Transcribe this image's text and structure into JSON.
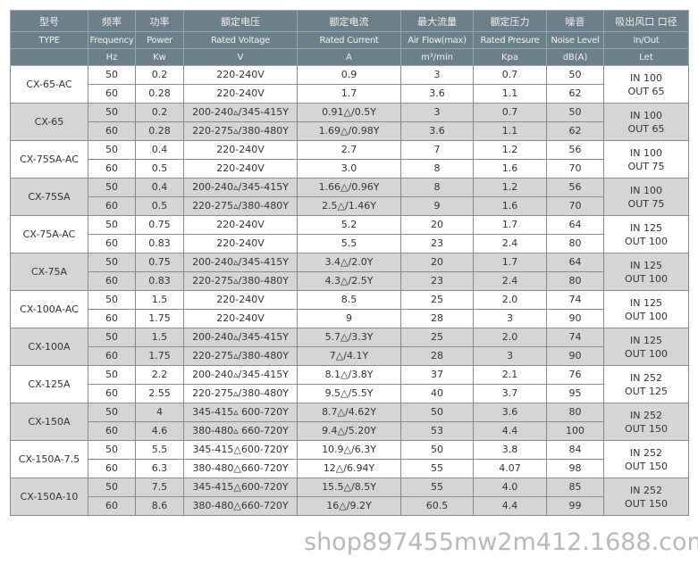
{
  "header": {
    "cn": [
      "型号",
      "频率",
      "功率",
      "额定电压",
      "额定电流",
      "最大流量",
      "额定压力",
      "噪音",
      "吸出风口 口径"
    ],
    "en": [
      "TYPE",
      "Frequency",
      "Power",
      "Rated Voltage",
      "Rated Current",
      "Air Flow(max)",
      "Rated Presure",
      "Noise Level",
      "In/Out"
    ],
    "units": [
      "",
      "Hz",
      "Kw",
      "V",
      "A",
      "m³/min",
      "Kpa",
      "dB(A)",
      "Let"
    ]
  },
  "models": [
    {
      "type": "CX-65-AC",
      "port": [
        "IN 100",
        "OUT 65"
      ],
      "rows": [
        [
          "50",
          "0.2",
          "220-240V",
          "0.9",
          "3",
          "0.7",
          "50"
        ],
        [
          "60",
          "0.28",
          "220-240V",
          "1.7",
          "3.6",
          "1.1",
          "62"
        ]
      ]
    },
    {
      "type": "CX-65",
      "port": [
        "IN 100",
        "OUT 65"
      ],
      "rows": [
        [
          "50",
          "0.2",
          "200-240▵/345-415Y",
          "0.91△/0.5Y",
          "3",
          "0.7",
          "50"
        ],
        [
          "60",
          "0.28",
          "220-275▵/380-480Y",
          "1.69△/0.98Y",
          "3.6",
          "1.1",
          "62"
        ]
      ]
    },
    {
      "type": "CX-75SA-AC",
      "port": [
        "IN 100",
        "OUT 75"
      ],
      "rows": [
        [
          "50",
          "0.4",
          "220-240V",
          "2.7",
          "7",
          "1.2",
          "56"
        ],
        [
          "60",
          "0.5",
          "220-240V",
          "3.0",
          "8",
          "1.6",
          "70"
        ]
      ]
    },
    {
      "type": "CX-75SA",
      "port": [
        "IN 100",
        "OUT 75"
      ],
      "rows": [
        [
          "50",
          "0.4",
          "200-240▵/345-415Y",
          "1.66△/0.96Y",
          "8",
          "1.2",
          "56"
        ],
        [
          "60",
          "0.5",
          "220-275▵/380-480Y",
          "2.5△/1.46Y",
          "9",
          "1.6",
          "70"
        ]
      ]
    },
    {
      "type": "CX-75A-AC",
      "port": [
        "IN 125",
        "OUT 100"
      ],
      "rows": [
        [
          "50",
          "0.75",
          "220-240V",
          "5.2",
          "20",
          "1.7",
          "64"
        ],
        [
          "60",
          "0.83",
          "220-240V",
          "5.5",
          "23",
          "2.4",
          "80"
        ]
      ]
    },
    {
      "type": "CX-75A",
      "port": [
        "IN 125",
        "OUT 100"
      ],
      "rows": [
        [
          "50",
          "0.75",
          "200-240▵/345-415Y",
          "3.4△/2.0Y",
          "20",
          "1.7",
          "64"
        ],
        [
          "60",
          "0.83",
          "220-275▵/380-480Y",
          "4.3△/2.5Y",
          "23",
          "2.4",
          "80"
        ]
      ]
    },
    {
      "type": "CX-100A-AC",
      "port": [
        "IN 125",
        "OUT 100"
      ],
      "rows": [
        [
          "50",
          "1.5",
          "220-240V",
          "8.5",
          "25",
          "2.0",
          "74"
        ],
        [
          "60",
          "1.75",
          "220-240V",
          "9",
          "28",
          "3",
          "90"
        ]
      ]
    },
    {
      "type": "CX-100A",
      "port": [
        "IN 125",
        "OUT 100"
      ],
      "rows": [
        [
          "50",
          "1.5",
          "200-240▵/345-415Y",
          "5.7△/3.3Y",
          "25",
          "2.0",
          "74"
        ],
        [
          "60",
          "1.75",
          "220-275▵/380-480Y",
          "7△/4.1Y",
          "28",
          "3",
          "90"
        ]
      ]
    },
    {
      "type": "CX-125A",
      "port": [
        "IN 252",
        "OUT 125"
      ],
      "rows": [
        [
          "50",
          "2.2",
          "200-240▵/345-415Y",
          "8.1△/3.8Y",
          "37",
          "2.1",
          "76"
        ],
        [
          "60",
          "2.55",
          "220-275▵/380-480Y",
          "9.5△/5.5Y",
          "40",
          "3.7",
          "95"
        ]
      ]
    },
    {
      "type": "CX-150A",
      "port": [
        "IN 252",
        "OUT 150"
      ],
      "rows": [
        [
          "50",
          "4",
          "345-415▵ 600-720Y",
          "8.7△/4.62Y",
          "50",
          "3.6",
          "80"
        ],
        [
          "60",
          "4.6",
          "380-480▵ 660-720Y",
          "9.4△/5.20Y",
          "53",
          "4.4",
          "100"
        ]
      ]
    },
    {
      "type": "CX-150A-7.5",
      "port": [
        "IN 252",
        "OUT 150"
      ],
      "rows": [
        [
          "50",
          "5.5",
          "345-415△600-720Y",
          "10.9△/6.3Y",
          "50",
          "3.8",
          "84"
        ],
        [
          "60",
          "6.3",
          "380-480△660-720Y",
          "12△/6.94Y",
          "55",
          "4.07",
          "98"
        ]
      ]
    },
    {
      "type": "CX-150A-10",
      "port": [
        "IN 252",
        "OUT 150"
      ],
      "rows": [
        [
          "50",
          "7.5",
          "345-415△600-720Y",
          "15.5△/8.5Y",
          "55",
          "4.0",
          "85"
        ],
        [
          "60",
          "8.6",
          "380-480△660-720Y",
          "16△/9.2Y",
          "60.5",
          "4.4",
          "99"
        ]
      ]
    }
  ],
  "watermark": "shop897455mw2m412.1688.com",
  "colors": {
    "header_bg": "#6d7f88",
    "shaded_row": "#d5d5d5"
  }
}
